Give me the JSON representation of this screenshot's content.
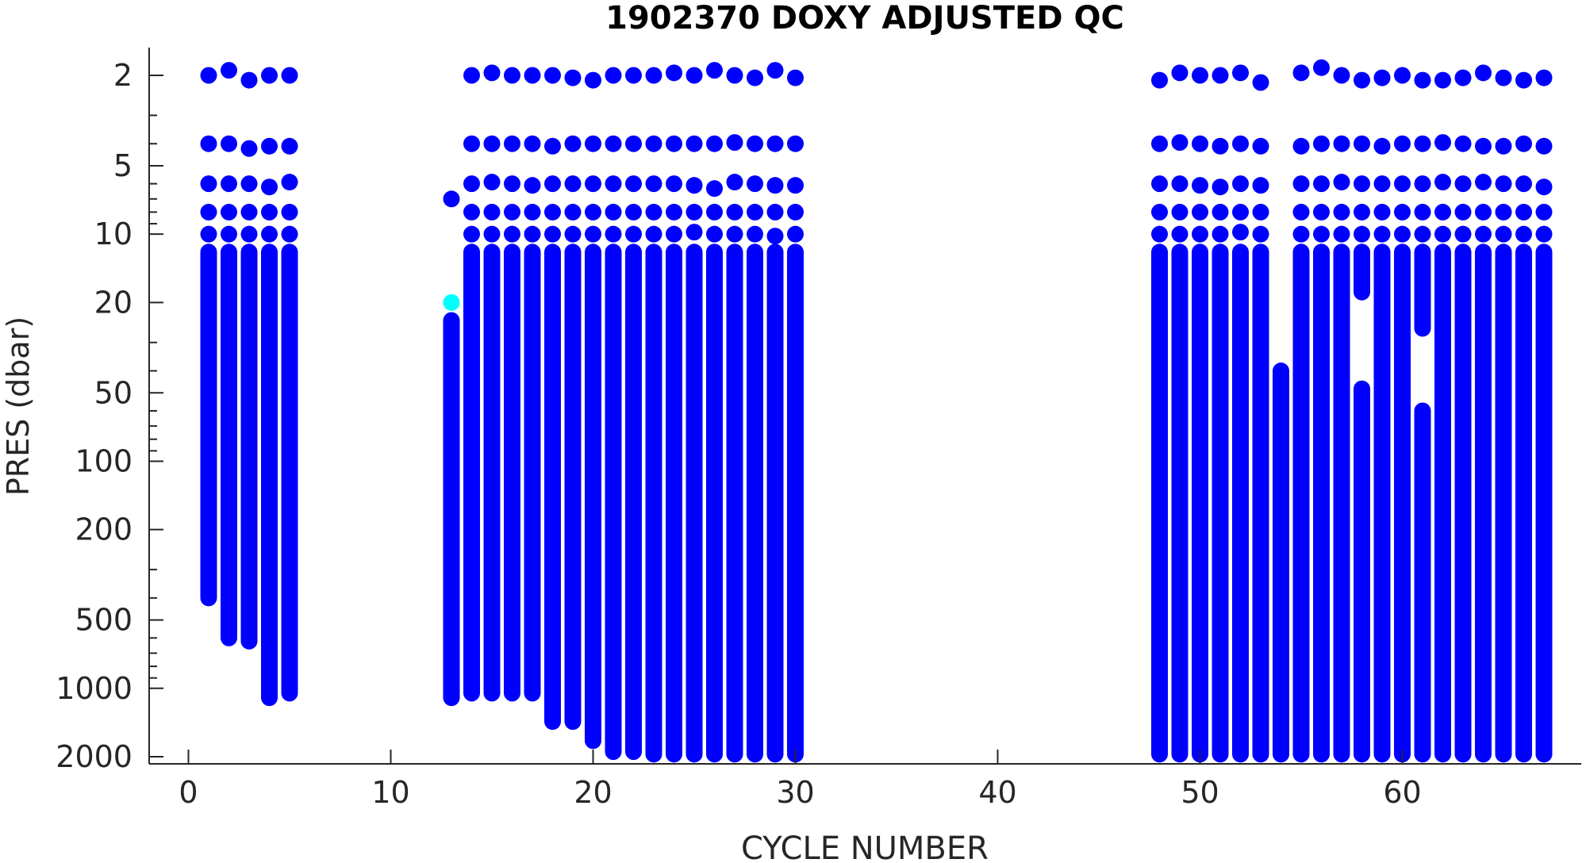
{
  "chart_data": {
    "type": "scatter",
    "title": "1902370  DOXY ADJUSTED QC",
    "xlabel": "CYCLE NUMBER",
    "ylabel": "PRES (dbar)",
    "xlim": [
      -2,
      69
    ],
    "ylim": [
      1.6,
      2100
    ],
    "yscale": "log",
    "yreversed": true,
    "xticks": [
      0,
      10,
      20,
      30,
      40,
      50,
      60
    ],
    "yticks": [
      2,
      5,
      10,
      20,
      50,
      100,
      200,
      500,
      1000,
      2000
    ],
    "grid": false,
    "legend": "none",
    "colors": {
      "good": "#0000ff",
      "flagged": "#00ffff",
      "axis": "#262626"
    },
    "flagged_points": [
      {
        "cycle": 13,
        "pres": 20
      }
    ],
    "profiles": [
      {
        "cycle": 1,
        "surface": [
          2.0,
          4.0,
          6.0,
          8.0,
          10.0
        ],
        "pres_min": 12,
        "pres_max": 400
      },
      {
        "cycle": 2,
        "surface": [
          1.9,
          4.0,
          6.0,
          8.0,
          10.0
        ],
        "pres_min": 12,
        "pres_max": 600
      },
      {
        "cycle": 3,
        "surface": [
          2.1,
          4.2,
          6.0,
          8.0,
          10.0
        ],
        "pres_min": 12,
        "pres_max": 620
      },
      {
        "cycle": 4,
        "surface": [
          2.0,
          4.1,
          6.2,
          8.0,
          10.0
        ],
        "pres_min": 12,
        "pres_max": 1100
      },
      {
        "cycle": 5,
        "surface": [
          2.0,
          4.1,
          5.9,
          8.0,
          10.0
        ],
        "pres_min": 12,
        "pres_max": 1050
      },
      {
        "cycle": 13,
        "surface": [
          7.0
        ],
        "pres_min": 24,
        "pres_max": 1100
      },
      {
        "cycle": 14,
        "surface": [
          2.0,
          4.0,
          6.0,
          8.0,
          10.0
        ],
        "pres_min": 12,
        "pres_max": 1050
      },
      {
        "cycle": 15,
        "surface": [
          1.95,
          4.0,
          5.9,
          8.0,
          10.0
        ],
        "pres_min": 12,
        "pres_max": 1050
      },
      {
        "cycle": 16,
        "surface": [
          2.0,
          4.0,
          6.0,
          8.0,
          10.0
        ],
        "pres_min": 12,
        "pres_max": 1050
      },
      {
        "cycle": 17,
        "surface": [
          2.0,
          4.0,
          6.1,
          8.0,
          10.0
        ],
        "pres_min": 12,
        "pres_max": 1050
      },
      {
        "cycle": 18,
        "surface": [
          2.0,
          4.1,
          6.0,
          8.0,
          10.0
        ],
        "pres_min": 12,
        "pres_max": 1400
      },
      {
        "cycle": 19,
        "surface": [
          2.05,
          4.0,
          6.0,
          8.0,
          10.0
        ],
        "pres_min": 12,
        "pres_max": 1400
      },
      {
        "cycle": 20,
        "surface": [
          2.1,
          4.0,
          6.0,
          8.0,
          10.0
        ],
        "pres_min": 12,
        "pres_max": 1700
      },
      {
        "cycle": 21,
        "surface": [
          2.0,
          4.0,
          6.0,
          8.0,
          10.0
        ],
        "pres_min": 12,
        "pres_max": 1900
      },
      {
        "cycle": 22,
        "surface": [
          2.0,
          4.0,
          6.0,
          8.0,
          10.0
        ],
        "pres_min": 12,
        "pres_max": 1900
      },
      {
        "cycle": 23,
        "surface": [
          2.0,
          4.0,
          6.0,
          8.0,
          10.0
        ],
        "pres_min": 12,
        "pres_max": 1950
      },
      {
        "cycle": 24,
        "surface": [
          1.95,
          4.0,
          6.0,
          8.0,
          10.0
        ],
        "pres_min": 12,
        "pres_max": 1950
      },
      {
        "cycle": 25,
        "surface": [
          2.0,
          4.0,
          6.1,
          8.0,
          9.8
        ],
        "pres_min": 12,
        "pres_max": 1950
      },
      {
        "cycle": 26,
        "surface": [
          1.9,
          4.0,
          6.3,
          8.0,
          10.0
        ],
        "pres_min": 12,
        "pres_max": 1950
      },
      {
        "cycle": 27,
        "surface": [
          2.0,
          3.95,
          5.9,
          8.0,
          10.0
        ],
        "pres_min": 12,
        "pres_max": 1950
      },
      {
        "cycle": 28,
        "surface": [
          2.05,
          4.0,
          6.0,
          8.0,
          10.0
        ],
        "pres_min": 12,
        "pres_max": 1950
      },
      {
        "cycle": 29,
        "surface": [
          1.9,
          4.0,
          6.1,
          8.0,
          10.2
        ],
        "pres_min": 12,
        "pres_max": 1950
      },
      {
        "cycle": 30,
        "surface": [
          2.05,
          4.0,
          6.1,
          8.0,
          10.0
        ],
        "pres_min": 12,
        "pres_max": 1950
      },
      {
        "cycle": 48,
        "surface": [
          2.1,
          4.0,
          6.0,
          8.0,
          10.0
        ],
        "pres_min": 12,
        "pres_max": 1950
      },
      {
        "cycle": 49,
        "surface": [
          1.95,
          3.95,
          6.0,
          8.0,
          10.0
        ],
        "pres_min": 12,
        "pres_max": 1950
      },
      {
        "cycle": 50,
        "surface": [
          2.0,
          4.0,
          6.1,
          8.0,
          10.0
        ],
        "pres_min": 12,
        "pres_max": 1950
      },
      {
        "cycle": 51,
        "surface": [
          2.0,
          4.1,
          6.2,
          8.0,
          10.0
        ],
        "pres_min": 12,
        "pres_max": 1950
      },
      {
        "cycle": 52,
        "surface": [
          1.95,
          4.0,
          6.0,
          8.0,
          9.8
        ],
        "pres_min": 12,
        "pres_max": 1950
      },
      {
        "cycle": 53,
        "surface": [
          2.15,
          4.1,
          6.1,
          8.0,
          10.0
        ],
        "pres_min": 12,
        "pres_max": 1950
      },
      {
        "cycle": 54,
        "surface": [],
        "pres_min": 40,
        "pres_max": 1950
      },
      {
        "cycle": 55,
        "surface": [
          1.95,
          4.1,
          6.0,
          8.0,
          10.0
        ],
        "pres_min": 12,
        "pres_max": 1950
      },
      {
        "cycle": 56,
        "surface": [
          1.85,
          4.0,
          6.0,
          8.0,
          10.0
        ],
        "pres_min": 12,
        "pres_max": 1950
      },
      {
        "cycle": 57,
        "surface": [
          2.0,
          4.0,
          5.9,
          8.0,
          10.0
        ],
        "pres_min": 12,
        "pres_max": 1950
      },
      {
        "cycle": 58,
        "surface": [
          2.1,
          4.0,
          6.0,
          8.0,
          10.0
        ],
        "pres_min": 12,
        "pres_max": 18,
        "deep_min": 48,
        "deep_max": 1950
      },
      {
        "cycle": 59,
        "surface": [
          2.05,
          4.1,
          6.0,
          8.0,
          10.0
        ],
        "pres_min": 12,
        "pres_max": 1950
      },
      {
        "cycle": 60,
        "surface": [
          2.0,
          4.0,
          6.0,
          8.0,
          10.0
        ],
        "pres_min": 12,
        "pres_max": 1950
      },
      {
        "cycle": 61,
        "surface": [
          2.1,
          4.0,
          6.0,
          8.0,
          10.0
        ],
        "pres_min": 12,
        "pres_max": 26,
        "deep_min": 60,
        "deep_max": 1950
      },
      {
        "cycle": 62,
        "surface": [
          2.1,
          3.95,
          5.9,
          8.0,
          10.0
        ],
        "pres_min": 12,
        "pres_max": 1950
      },
      {
        "cycle": 63,
        "surface": [
          2.05,
          4.0,
          6.0,
          8.0,
          10.0
        ],
        "pres_min": 12,
        "pres_max": 1950
      },
      {
        "cycle": 64,
        "surface": [
          1.95,
          4.1,
          5.9,
          8.0,
          10.0
        ],
        "pres_min": 12,
        "pres_max": 1950
      },
      {
        "cycle": 65,
        "surface": [
          2.05,
          4.1,
          6.0,
          8.0,
          10.0
        ],
        "pres_min": 12,
        "pres_max": 1950
      },
      {
        "cycle": 66,
        "surface": [
          2.1,
          4.0,
          6.0,
          8.0,
          10.0
        ],
        "pres_min": 12,
        "pres_max": 1950
      },
      {
        "cycle": 67,
        "surface": [
          2.05,
          4.1,
          6.2,
          8.0,
          10.0
        ],
        "pres_min": 12,
        "pres_max": 1950
      }
    ]
  }
}
